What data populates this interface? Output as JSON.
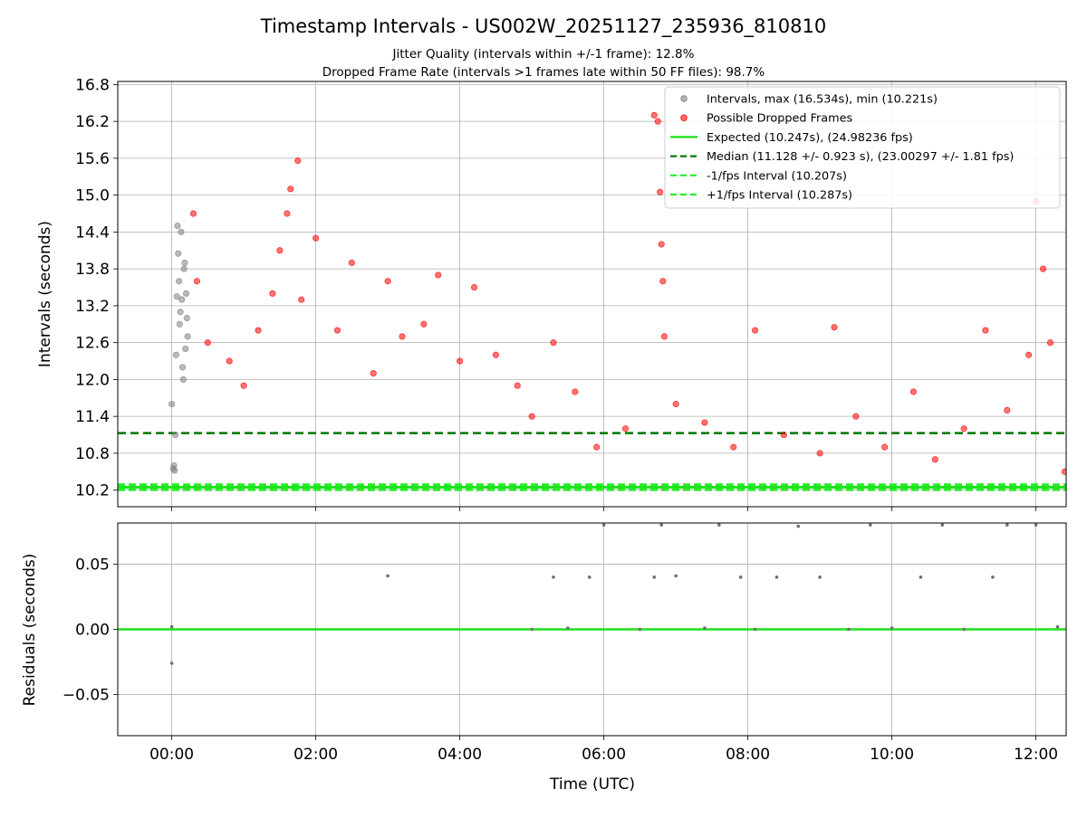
{
  "chart_data": [
    {
      "type": "scatter",
      "title": "Timestamp Intervals - US002W_20251127_235936_810810",
      "subtitle_lines": [
        "Jitter Quality (intervals within +/-1 frame): 12.8%",
        "Dropped Frame Rate (intervals >1 frames late within 50 FF files): 98.7%"
      ],
      "xlabel": "",
      "ylabel": "Intervals (seconds)",
      "x_unit": "hours since 00:00 UTC",
      "xlim": [
        -0.75,
        12.42
      ],
      "ylim": [
        9.93,
        16.85
      ],
      "yticks": [
        "10.2",
        "10.8",
        "11.4",
        "12.0",
        "12.6",
        "13.2",
        "13.8",
        "14.4",
        "15.0",
        "15.6",
        "16.2",
        "16.8"
      ],
      "grid": true,
      "legend_position": "top-right",
      "legend": [
        "Intervals, max (16.534s), min (10.221s)",
        "Possible Dropped Frames",
        "Expected (10.247s), (24.98236 fps)",
        "Median (11.128 +/- 0.923 s), (23.00297 +/- 1.81 fps)",
        "-1/fps Interval (10.207s)",
        "+1/fps Interval (10.287s)"
      ],
      "lines": [
        {
          "name": "Expected (10.247s), (24.98236 fps)",
          "y": 10.247,
          "color": "#1de11d",
          "style": "solid"
        },
        {
          "name": "Median (11.128 +/- 0.923 s), (23.00297 +/- 1.81 fps)",
          "y": 11.128,
          "color": "#007800",
          "style": "dashed"
        },
        {
          "name": "-1/fps Interval (10.207s)",
          "y": 10.207,
          "color": "#25ee25",
          "style": "dashed"
        },
        {
          "name": "+1/fps Interval (10.287s)",
          "y": 10.287,
          "color": "#25ee25",
          "style": "dashed"
        }
      ],
      "series": [
        {
          "name": "Intervals, max (16.534s), min (10.221s)",
          "color": "#808080",
          "points": [
            [
              0.0,
              11.6
            ],
            [
              0.02,
              10.55
            ],
            [
              0.03,
              10.6
            ],
            [
              0.04,
              10.52
            ],
            [
              0.05,
              11.1
            ],
            [
              0.06,
              12.4
            ],
            [
              0.07,
              13.35
            ],
            [
              0.08,
              14.5
            ],
            [
              0.09,
              14.05
            ],
            [
              0.1,
              13.6
            ],
            [
              0.11,
              12.9
            ],
            [
              0.12,
              13.1
            ],
            [
              0.13,
              14.4
            ],
            [
              0.14,
              13.3
            ],
            [
              0.15,
              12.2
            ],
            [
              0.16,
              12.0
            ],
            [
              0.17,
              13.8
            ],
            [
              0.18,
              13.9
            ],
            [
              0.19,
              12.5
            ],
            [
              0.2,
              13.4
            ],
            [
              0.21,
              13.0
            ],
            [
              0.22,
              12.7
            ]
          ]
        },
        {
          "name": "Possible Dropped Frames",
          "color": "#ff0000",
          "points": [
            [
              0.3,
              14.7
            ],
            [
              0.35,
              13.6
            ],
            [
              0.5,
              12.6
            ],
            [
              0.8,
              12.3
            ],
            [
              1.0,
              11.9
            ],
            [
              1.2,
              12.8
            ],
            [
              1.4,
              13.4
            ],
            [
              1.5,
              14.1
            ],
            [
              1.6,
              14.7
            ],
            [
              1.65,
              15.1
            ],
            [
              1.75,
              15.56
            ],
            [
              1.8,
              13.3
            ],
            [
              2.0,
              14.3
            ],
            [
              2.3,
              12.8
            ],
            [
              2.5,
              13.9
            ],
            [
              2.8,
              12.1
            ],
            [
              3.0,
              13.6
            ],
            [
              3.2,
              12.7
            ],
            [
              3.5,
              12.9
            ],
            [
              3.7,
              13.7
            ],
            [
              4.0,
              12.3
            ],
            [
              4.2,
              13.5
            ],
            [
              4.5,
              12.4
            ],
            [
              4.8,
              11.9
            ],
            [
              5.0,
              11.4
            ],
            [
              5.3,
              12.6
            ],
            [
              5.6,
              11.8
            ],
            [
              5.9,
              10.9
            ],
            [
              6.3,
              11.2
            ],
            [
              6.7,
              16.3
            ],
            [
              6.75,
              16.2
            ],
            [
              6.78,
              15.05
            ],
            [
              6.8,
              14.2
            ],
            [
              6.82,
              13.6
            ],
            [
              6.84,
              12.7
            ],
            [
              7.0,
              11.6
            ],
            [
              7.4,
              11.3
            ],
            [
              7.8,
              10.9
            ],
            [
              8.1,
              12.8
            ],
            [
              8.5,
              11.1
            ],
            [
              9.0,
              10.8
            ],
            [
              9.2,
              12.85
            ],
            [
              9.5,
              11.4
            ],
            [
              9.9,
              10.9
            ],
            [
              10.3,
              11.8
            ],
            [
              10.6,
              10.7
            ],
            [
              11.0,
              11.2
            ],
            [
              11.3,
              12.8
            ],
            [
              11.6,
              11.5
            ],
            [
              11.9,
              12.4
            ],
            [
              12.0,
              14.9
            ],
            [
              12.1,
              13.8
            ],
            [
              12.2,
              12.6
            ],
            [
              12.4,
              10.5
            ]
          ]
        }
      ]
    },
    {
      "type": "scatter",
      "title": "",
      "xlabel": "Time (UTC)",
      "ylabel": "Residuals (seconds)",
      "xlim": [
        -0.75,
        12.42
      ],
      "ylim": [
        -0.0815,
        0.0815
      ],
      "xticks": [
        "00:00",
        "02:00",
        "04:00",
        "06:00",
        "08:00",
        "10:00",
        "12:00"
      ],
      "yticks": [
        "−0.05",
        "0.00",
        "0.05"
      ],
      "grid": true,
      "lines": [
        {
          "name": "Expected",
          "y": 0.0,
          "color": "#1de11d",
          "style": "solid"
        }
      ],
      "series": [
        {
          "name": "Residuals",
          "color": "#707070",
          "points": [
            [
              0.0,
              0.002
            ],
            [
              0.0,
              -0.026
            ],
            [
              3.0,
              0.041
            ],
            [
              5.0,
              0.0
            ],
            [
              5.3,
              0.04
            ],
            [
              5.5,
              0.001
            ],
            [
              5.8,
              0.04
            ],
            [
              6.0,
              0.08
            ],
            [
              6.5,
              0.0
            ],
            [
              6.7,
              0.04
            ],
            [
              6.8,
              0.08
            ],
            [
              7.0,
              0.041
            ],
            [
              7.4,
              0.001
            ],
            [
              7.6,
              0.08
            ],
            [
              7.9,
              0.04
            ],
            [
              8.1,
              0.0
            ],
            [
              8.4,
              0.04
            ],
            [
              8.7,
              0.079
            ],
            [
              9.0,
              0.04
            ],
            [
              9.4,
              0.0
            ],
            [
              9.7,
              0.08
            ],
            [
              10.0,
              0.001
            ],
            [
              10.4,
              0.04
            ],
            [
              10.7,
              0.08
            ],
            [
              11.0,
              0.0
            ],
            [
              11.4,
              0.04
            ],
            [
              11.6,
              0.08
            ],
            [
              12.0,
              0.08
            ],
            [
              12.3,
              0.002
            ]
          ]
        }
      ]
    }
  ]
}
